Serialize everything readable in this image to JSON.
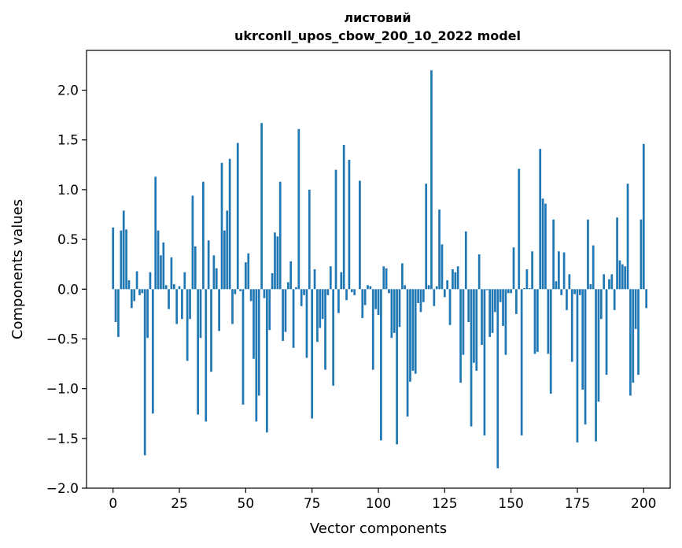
{
  "chart_data": {
    "type": "bar",
    "title": "листовий",
    "subtitle": "ukrconll_upos_cbow_200_10_2022 model",
    "xlabel": "Vector components",
    "ylabel": "Components values",
    "xlim": [
      -10,
      210
    ],
    "ylim": [
      -2.0,
      2.4
    ],
    "x_ticks": [
      0,
      25,
      50,
      75,
      100,
      125,
      150,
      175,
      200
    ],
    "y_ticks": [
      -2.0,
      -1.5,
      -1.0,
      -0.5,
      0.0,
      0.5,
      1.0,
      1.5,
      2.0
    ],
    "x_tick_labels": [
      "0",
      "25",
      "50",
      "75",
      "100",
      "125",
      "150",
      "175",
      "200"
    ],
    "y_tick_labels": [
      "−2.0",
      "−1.5",
      "−1.0",
      "−0.5",
      "0.0",
      "0.5",
      "1.0",
      "1.5",
      "2.0"
    ],
    "grid": false,
    "color": "#1f77b4",
    "values": [
      0.62,
      -0.33,
      -0.48,
      0.59,
      0.79,
      0.6,
      0.09,
      -0.19,
      -0.12,
      0.18,
      -0.06,
      -0.04,
      -1.67,
      -0.49,
      0.17,
      -1.25,
      1.13,
      0.59,
      0.34,
      0.47,
      0.04,
      -0.2,
      0.32,
      0.05,
      -0.35,
      0.03,
      -0.3,
      0.17,
      -0.72,
      -0.3,
      0.94,
      0.43,
      -1.26,
      -0.49,
      1.08,
      -1.33,
      0.49,
      -0.83,
      0.34,
      0.21,
      -0.42,
      1.27,
      0.59,
      0.79,
      1.31,
      -0.35,
      -0.05,
      1.47,
      -0.02,
      -1.16,
      0.27,
      0.36,
      -0.12,
      -0.7,
      -1.33,
      -1.07,
      1.67,
      -0.09,
      -1.44,
      -0.41,
      0.16,
      0.57,
      0.53,
      1.08,
      -0.52,
      -0.43,
      0.07,
      0.28,
      -0.59,
      0.02,
      1.61,
      -0.17,
      -0.06,
      -0.69,
      1.0,
      -1.3,
      0.2,
      -0.53,
      -0.39,
      -0.3,
      -0.81,
      -0.06,
      0.23,
      -0.97,
      1.2,
      -0.24,
      0.17,
      1.45,
      -0.11,
      1.3,
      -0.03,
      -0.06,
      0.0,
      1.09,
      -0.29,
      -0.16,
      0.04,
      0.03,
      -0.81,
      -0.2,
      -0.26,
      -1.52,
      0.23,
      0.21,
      -0.04,
      -0.49,
      -0.44,
      -1.56,
      -0.38,
      0.26,
      0.04,
      -1.28,
      -0.93,
      -0.82,
      -0.85,
      -0.14,
      -0.23,
      -0.13,
      1.06,
      0.04,
      2.2,
      -0.17,
      0.03,
      0.8,
      0.45,
      -0.08,
      0.09,
      -0.36,
      0.2,
      0.17,
      0.23,
      -0.94,
      -0.66,
      0.58,
      -0.33,
      -1.38,
      -0.74,
      -0.82,
      0.35,
      -0.56,
      -1.47,
      -0.01,
      -0.48,
      -0.44,
      -0.23,
      -1.8,
      -0.13,
      -0.37,
      -0.66,
      -0.04,
      -0.04,
      0.42,
      -0.25,
      1.21,
      -1.47,
      0.01,
      0.2,
      0.01,
      0.38,
      -0.65,
      -0.63,
      1.41,
      0.91,
      0.86,
      -0.65,
      -1.05,
      0.7,
      0.08,
      0.38,
      -0.06,
      0.37,
      -0.21,
      0.15,
      -0.73,
      -0.05,
      -1.54,
      -0.06,
      -1.01,
      -1.36,
      0.7,
      0.05,
      0.44,
      -1.53,
      -1.13,
      -0.3,
      0.15,
      -0.86,
      0.1,
      0.15,
      -0.21,
      0.72,
      0.29,
      0.25,
      0.23,
      1.06,
      -1.07,
      -0.94,
      -0.4,
      -0.86,
      0.7,
      1.46,
      -0.19
    ]
  }
}
